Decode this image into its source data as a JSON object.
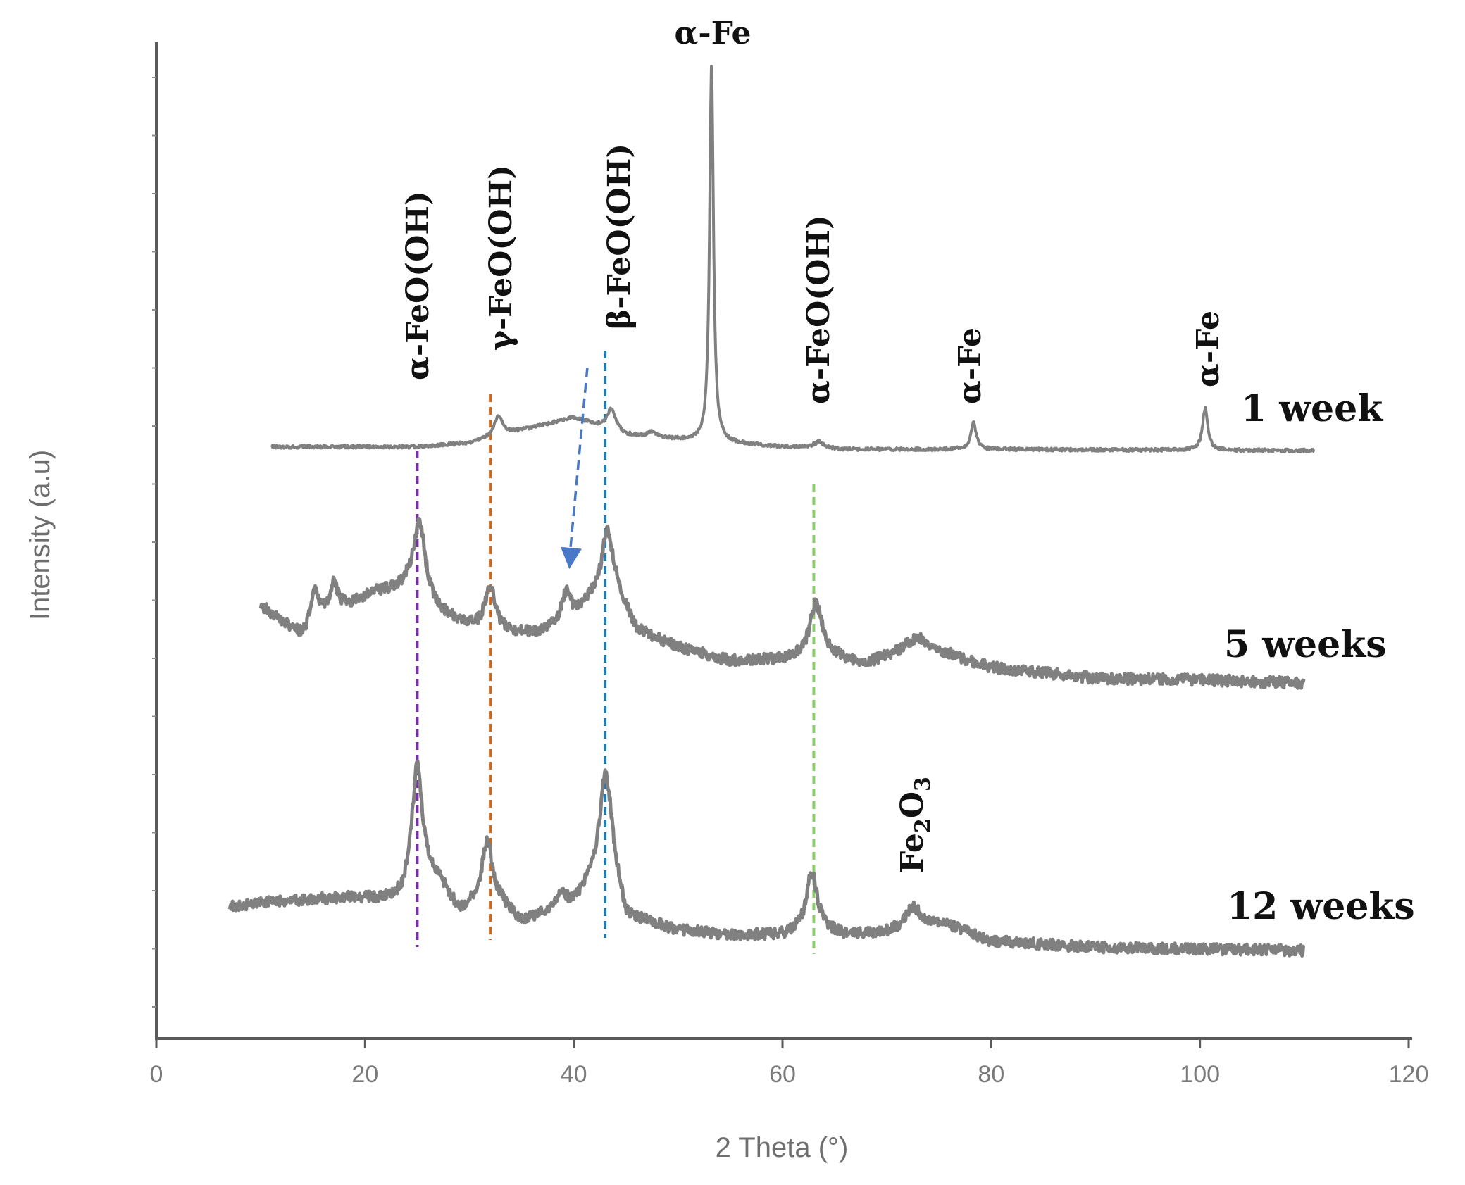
{
  "chart_data": {
    "type": "line",
    "xlabel": "2 Theta (°)",
    "ylabel": "Intensity (a.u)",
    "xlim": [
      0,
      120
    ],
    "xticks": [
      0,
      20,
      40,
      60,
      80,
      100,
      120
    ],
    "y_tick_marks": 17,
    "grid": false,
    "series": [
      {
        "name": "1 week",
        "color": "#808080",
        "x_range": [
          11,
          111
        ],
        "baseline": [
          [
            11,
            0.3
          ],
          [
            25,
            0.3
          ],
          [
            30,
            0.6
          ],
          [
            36,
            1.8
          ],
          [
            40,
            2.6
          ],
          [
            45,
            1.2
          ],
          [
            52,
            0.7
          ],
          [
            60,
            0.3
          ],
          [
            66,
            0.1
          ],
          [
            80,
            0.1
          ],
          [
            111,
            0.0
          ]
        ],
        "peaks": [
          {
            "x": 32.8,
            "height": 1.6,
            "width": 0.5
          },
          {
            "x": 43.6,
            "height": 1.7,
            "width": 0.5
          },
          {
            "x": 47.5,
            "height": 0.4,
            "width": 0.6
          },
          {
            "x": 53.2,
            "height": 30.0,
            "width": 0.22
          },
          {
            "x": 63.5,
            "height": 0.5,
            "width": 0.6
          },
          {
            "x": 78.3,
            "height": 2.2,
            "width": 0.3
          },
          {
            "x": 100.5,
            "height": 3.3,
            "width": 0.3
          }
        ]
      },
      {
        "name": "5 weeks",
        "color": "#808080",
        "x_range": [
          10,
          110
        ],
        "baseline": [
          [
            10,
            5.0
          ],
          [
            14,
            3.0
          ],
          [
            17,
            4.5
          ],
          [
            21,
            5.8
          ],
          [
            24,
            6.0
          ],
          [
            27,
            4.5
          ],
          [
            30,
            3.6
          ],
          [
            34,
            3.2
          ],
          [
            37,
            3.2
          ],
          [
            40,
            4.0
          ],
          [
            42,
            5.6
          ],
          [
            44,
            6.0
          ],
          [
            46,
            3.4
          ],
          [
            50,
            2.3
          ],
          [
            55,
            1.4
          ],
          [
            60,
            1.5
          ],
          [
            64,
            1.8
          ],
          [
            68,
            1.2
          ],
          [
            72,
            2.2
          ],
          [
            76,
            1.8
          ],
          [
            80,
            1.0
          ],
          [
            90,
            0.3
          ],
          [
            100,
            0.2
          ],
          [
            110,
            0.0
          ]
        ],
        "peaks": [
          {
            "x": 15.2,
            "height": 2.2,
            "width": 0.5
          },
          {
            "x": 17.0,
            "height": 1.8,
            "width": 0.5
          },
          {
            "x": 25.2,
            "height": 5.0,
            "width": 0.7
          },
          {
            "x": 32.0,
            "height": 2.8,
            "width": 0.6
          },
          {
            "x": 39.3,
            "height": 2.0,
            "width": 0.6
          },
          {
            "x": 43.2,
            "height": 4.0,
            "width": 0.6
          },
          {
            "x": 63.2,
            "height": 3.4,
            "width": 0.7
          },
          {
            "x": 73.0,
            "height": 0.8,
            "width": 1.0
          }
        ]
      },
      {
        "name": "12 weeks",
        "color": "#808080",
        "x_range": [
          7,
          110
        ],
        "baseline": [
          [
            7,
            2.8
          ],
          [
            12,
            3.2
          ],
          [
            18,
            3.4
          ],
          [
            22,
            3.3
          ],
          [
            23.5,
            3.4
          ],
          [
            25,
            5.0
          ],
          [
            27,
            4.5
          ],
          [
            29,
            2.5
          ],
          [
            31,
            3.0
          ],
          [
            33,
            3.0
          ],
          [
            35,
            1.8
          ],
          [
            38,
            2.5
          ],
          [
            40,
            3.0
          ],
          [
            42,
            5.0
          ],
          [
            43.5,
            6.2
          ],
          [
            45,
            2.2
          ],
          [
            50,
            1.3
          ],
          [
            55,
            1.0
          ],
          [
            60,
            1.0
          ],
          [
            63,
            1.5
          ],
          [
            66,
            1.0
          ],
          [
            70,
            1.2
          ],
          [
            73,
            1.6
          ],
          [
            76,
            1.6
          ],
          [
            80,
            0.6
          ],
          [
            90,
            0.2
          ],
          [
            110,
            0.0
          ]
        ],
        "peaks": [
          {
            "x": 25.0,
            "height": 7.0,
            "width": 0.6
          },
          {
            "x": 31.7,
            "height": 4.0,
            "width": 0.6
          },
          {
            "x": 38.8,
            "height": 1.0,
            "width": 0.6
          },
          {
            "x": 43.0,
            "height": 5.5,
            "width": 0.6
          },
          {
            "x": 62.8,
            "height": 3.6,
            "width": 0.6
          },
          {
            "x": 72.5,
            "height": 1.3,
            "width": 0.8
          }
        ]
      }
    ],
    "reference_lines": [
      {
        "x": 25,
        "color": "#7b2fa6"
      },
      {
        "x": 32,
        "color": "#c9671c"
      },
      {
        "x": 43,
        "color": "#1f7ab8"
      },
      {
        "x": 63,
        "color": "#8ccc6c"
      }
    ],
    "arrow": {
      "from_x": 41.3,
      "to_x": 39.3,
      "color": "#4a78c8"
    },
    "annotations": [
      {
        "text": "α-Fe",
        "x": 53.5,
        "orientation": "horizontal"
      },
      {
        "text": "α-FeO(OH)",
        "x": 25,
        "orientation": "vertical"
      },
      {
        "text": "γ-FeO(OH)",
        "x": 34.5,
        "orientation": "vertical"
      },
      {
        "text": "β-FeO(OH)",
        "x": 45,
        "orientation": "vertical"
      },
      {
        "text": "α-FeO(OH)",
        "x": 63,
        "orientation": "vertical"
      },
      {
        "text": "α-Fe",
        "x": 78.2,
        "orientation": "vertical"
      },
      {
        "text": "α-Fe",
        "x": 100.5,
        "orientation": "vertical"
      },
      {
        "text": "Fe2O3",
        "x": 74,
        "orientation": "vertical"
      }
    ]
  }
}
